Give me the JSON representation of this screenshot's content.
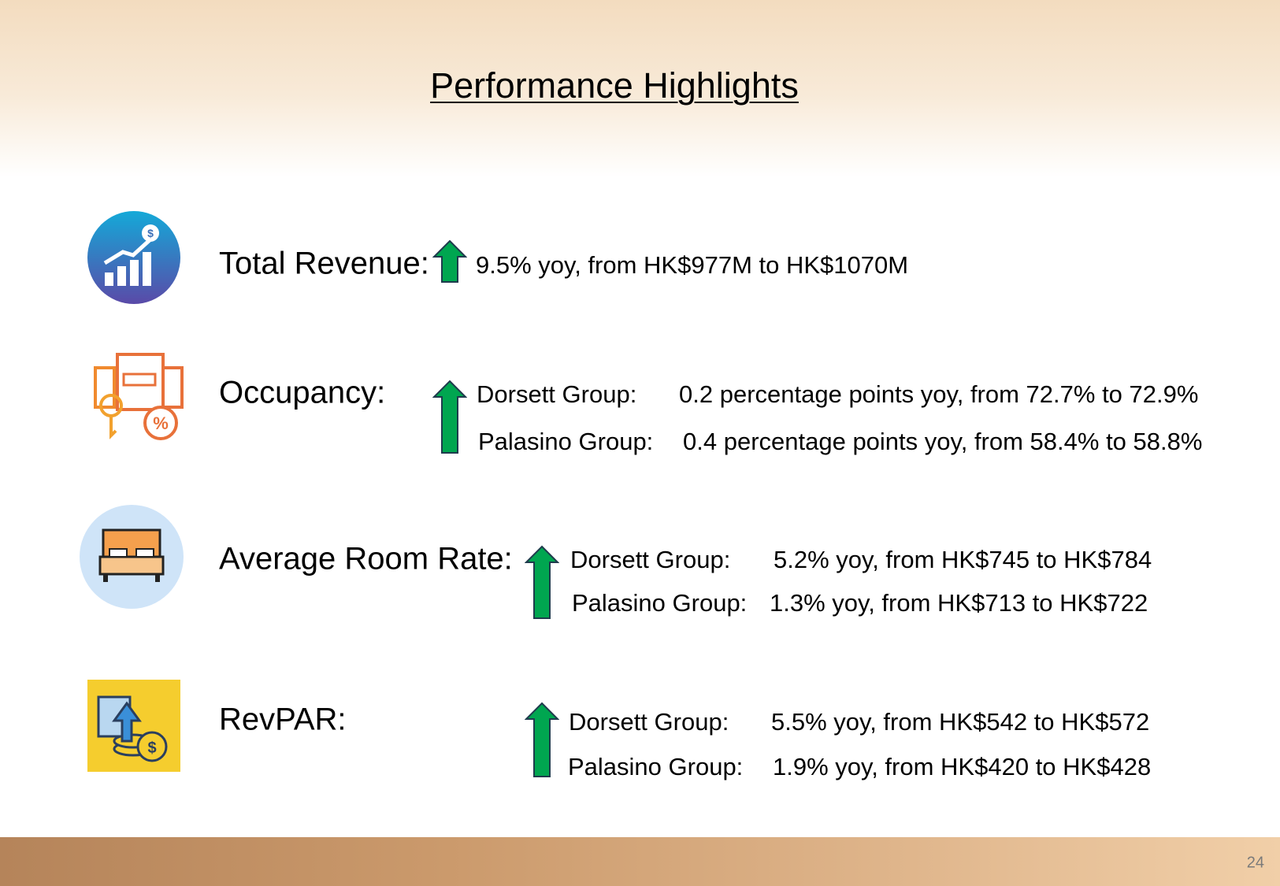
{
  "title": "Performance Highlights",
  "items": [
    {
      "label": "Total Revenue:",
      "lines": [
        {
          "text": "9.5% yoy, from HK$977M to HK$1070M"
        }
      ]
    },
    {
      "label": "Occupancy:",
      "lines": [
        {
          "group": "Dorsett Group:",
          "text": "0.2 percentage points yoy, from 72.7% to 72.9%"
        },
        {
          "group": "Palasino Group:",
          "text": "0.4 percentage points yoy, from 58.4% to 58.8%"
        }
      ]
    },
    {
      "label": "Average Room Rate:",
      "lines": [
        {
          "group": "Dorsett Group:",
          "text": "5.2% yoy, from HK$745 to HK$784"
        },
        {
          "group": "Palasino Group:",
          "text": "1.3% yoy, from HK$713 to HK$722"
        }
      ]
    },
    {
      "label": "RevPAR:",
      "lines": [
        {
          "group": "Dorsett Group:",
          "text": "5.5% yoy, from HK$542 to HK$572"
        },
        {
          "group": "Palasino Group:",
          "text": "1.9% yoy, from HK$420 to HK$428"
        }
      ]
    }
  ],
  "page_number": "24"
}
